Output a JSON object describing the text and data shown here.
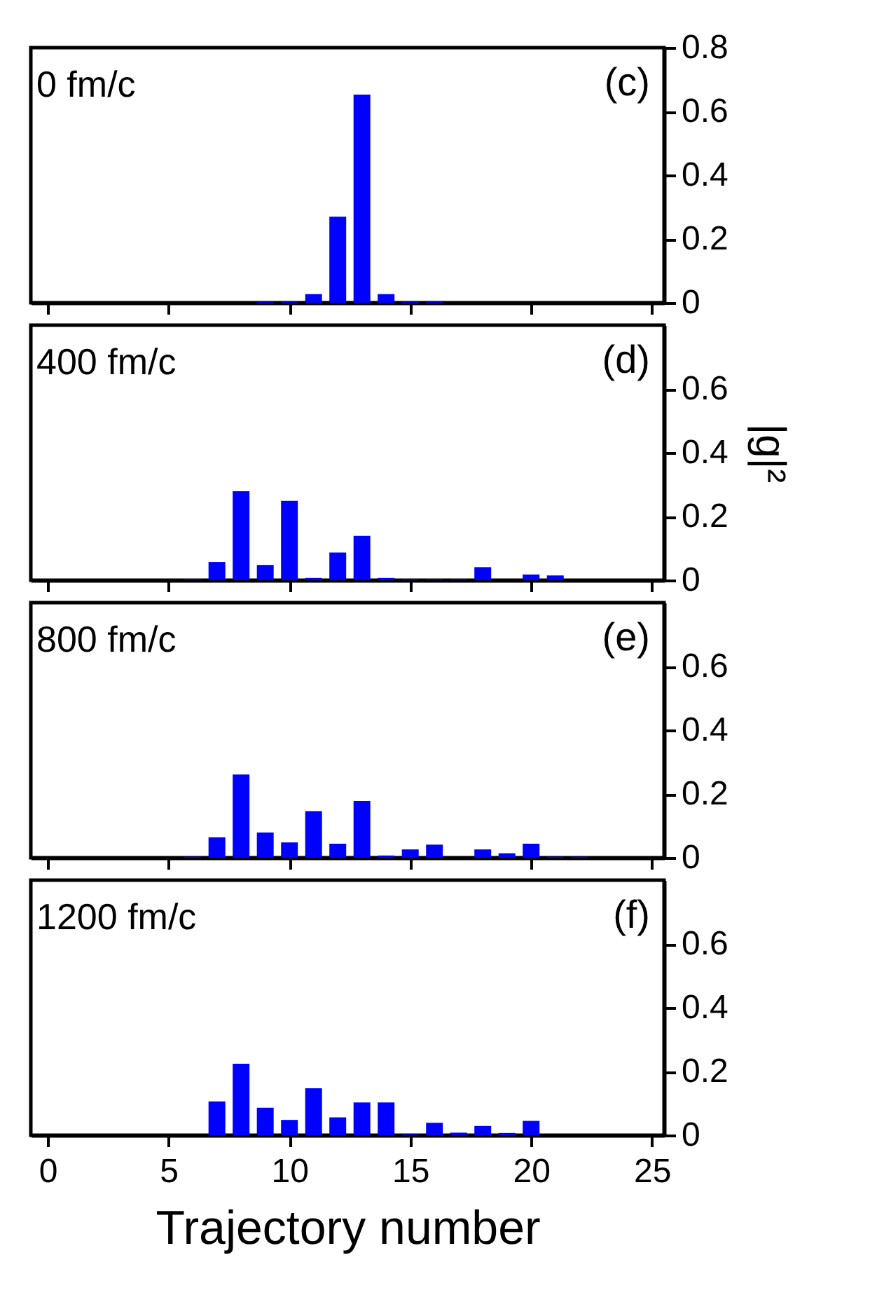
{
  "chart_data": [
    {
      "type": "bar",
      "annotations": [
        "0 fm/c",
        "(c)"
      ],
      "x": [
        9,
        10,
        11,
        12,
        13,
        14,
        15,
        16
      ],
      "values": [
        0.003,
        0.003,
        0.027,
        0.27,
        0.653,
        0.027,
        0.003,
        0.003
      ],
      "color": "#0000ff",
      "xlim": [
        -0.7,
        25.5
      ],
      "ylim": [
        0,
        0.8
      ],
      "xticks": [
        0,
        5,
        10,
        15,
        20,
        25
      ],
      "yticks": [
        0,
        0.2,
        0.4,
        0.6,
        0.8
      ],
      "tick_labels": "y"
    },
    {
      "type": "bar",
      "annotations": [
        "400 fm/c",
        "(d)"
      ],
      "ylabel": "|g|²",
      "x": [
        6,
        7,
        8,
        9,
        10,
        11,
        12,
        13,
        14,
        15,
        16,
        17,
        18,
        20,
        21
      ],
      "values": [
        0.003,
        0.057,
        0.279,
        0.048,
        0.249,
        0.007,
        0.087,
        0.139,
        0.007,
        0.003,
        0.003,
        0.003,
        0.041,
        0.018,
        0.015
      ],
      "color": "#0000ff",
      "xlim": [
        -0.7,
        25.5
      ],
      "ylim": [
        0,
        0.8
      ],
      "xticks": [
        0,
        5,
        10,
        15,
        20,
        25
      ],
      "yticks": [
        0,
        0.2,
        0.4,
        0.6
      ],
      "tick_labels": "y"
    },
    {
      "type": "bar",
      "annotations": [
        "800 fm/c",
        "(e)"
      ],
      "x": [
        6,
        7,
        8,
        9,
        10,
        11,
        12,
        13,
        14,
        15,
        16,
        18,
        19,
        20,
        21,
        22
      ],
      "values": [
        0.003,
        0.064,
        0.261,
        0.079,
        0.048,
        0.146,
        0.044,
        0.178,
        0.007,
        0.026,
        0.041,
        0.026,
        0.014,
        0.044,
        0.003,
        0.003
      ],
      "color": "#0000ff",
      "xlim": [
        -0.7,
        25.5
      ],
      "ylim": [
        0,
        0.8
      ],
      "xticks": [
        0,
        5,
        10,
        15,
        20,
        25
      ],
      "yticks": [
        0,
        0.2,
        0.4,
        0.6
      ],
      "tick_labels": "y"
    },
    {
      "type": "bar",
      "annotations": [
        "1200 fm/c",
        "(f)"
      ],
      "xlabel": "Trajectory number",
      "x": [
        7,
        8,
        9,
        10,
        11,
        12,
        13,
        14,
        15,
        16,
        17,
        18,
        19,
        20
      ],
      "values": [
        0.106,
        0.224,
        0.086,
        0.048,
        0.147,
        0.056,
        0.103,
        0.103,
        0.003,
        0.039,
        0.008,
        0.029,
        0.007,
        0.045
      ],
      "color": "#0000ff",
      "xlim": [
        -0.7,
        25.5
      ],
      "ylim": [
        0,
        0.8
      ],
      "xticks": [
        0,
        5,
        10,
        15,
        20,
        25
      ],
      "yticks": [
        0,
        0.2,
        0.4,
        0.6
      ]
    }
  ]
}
